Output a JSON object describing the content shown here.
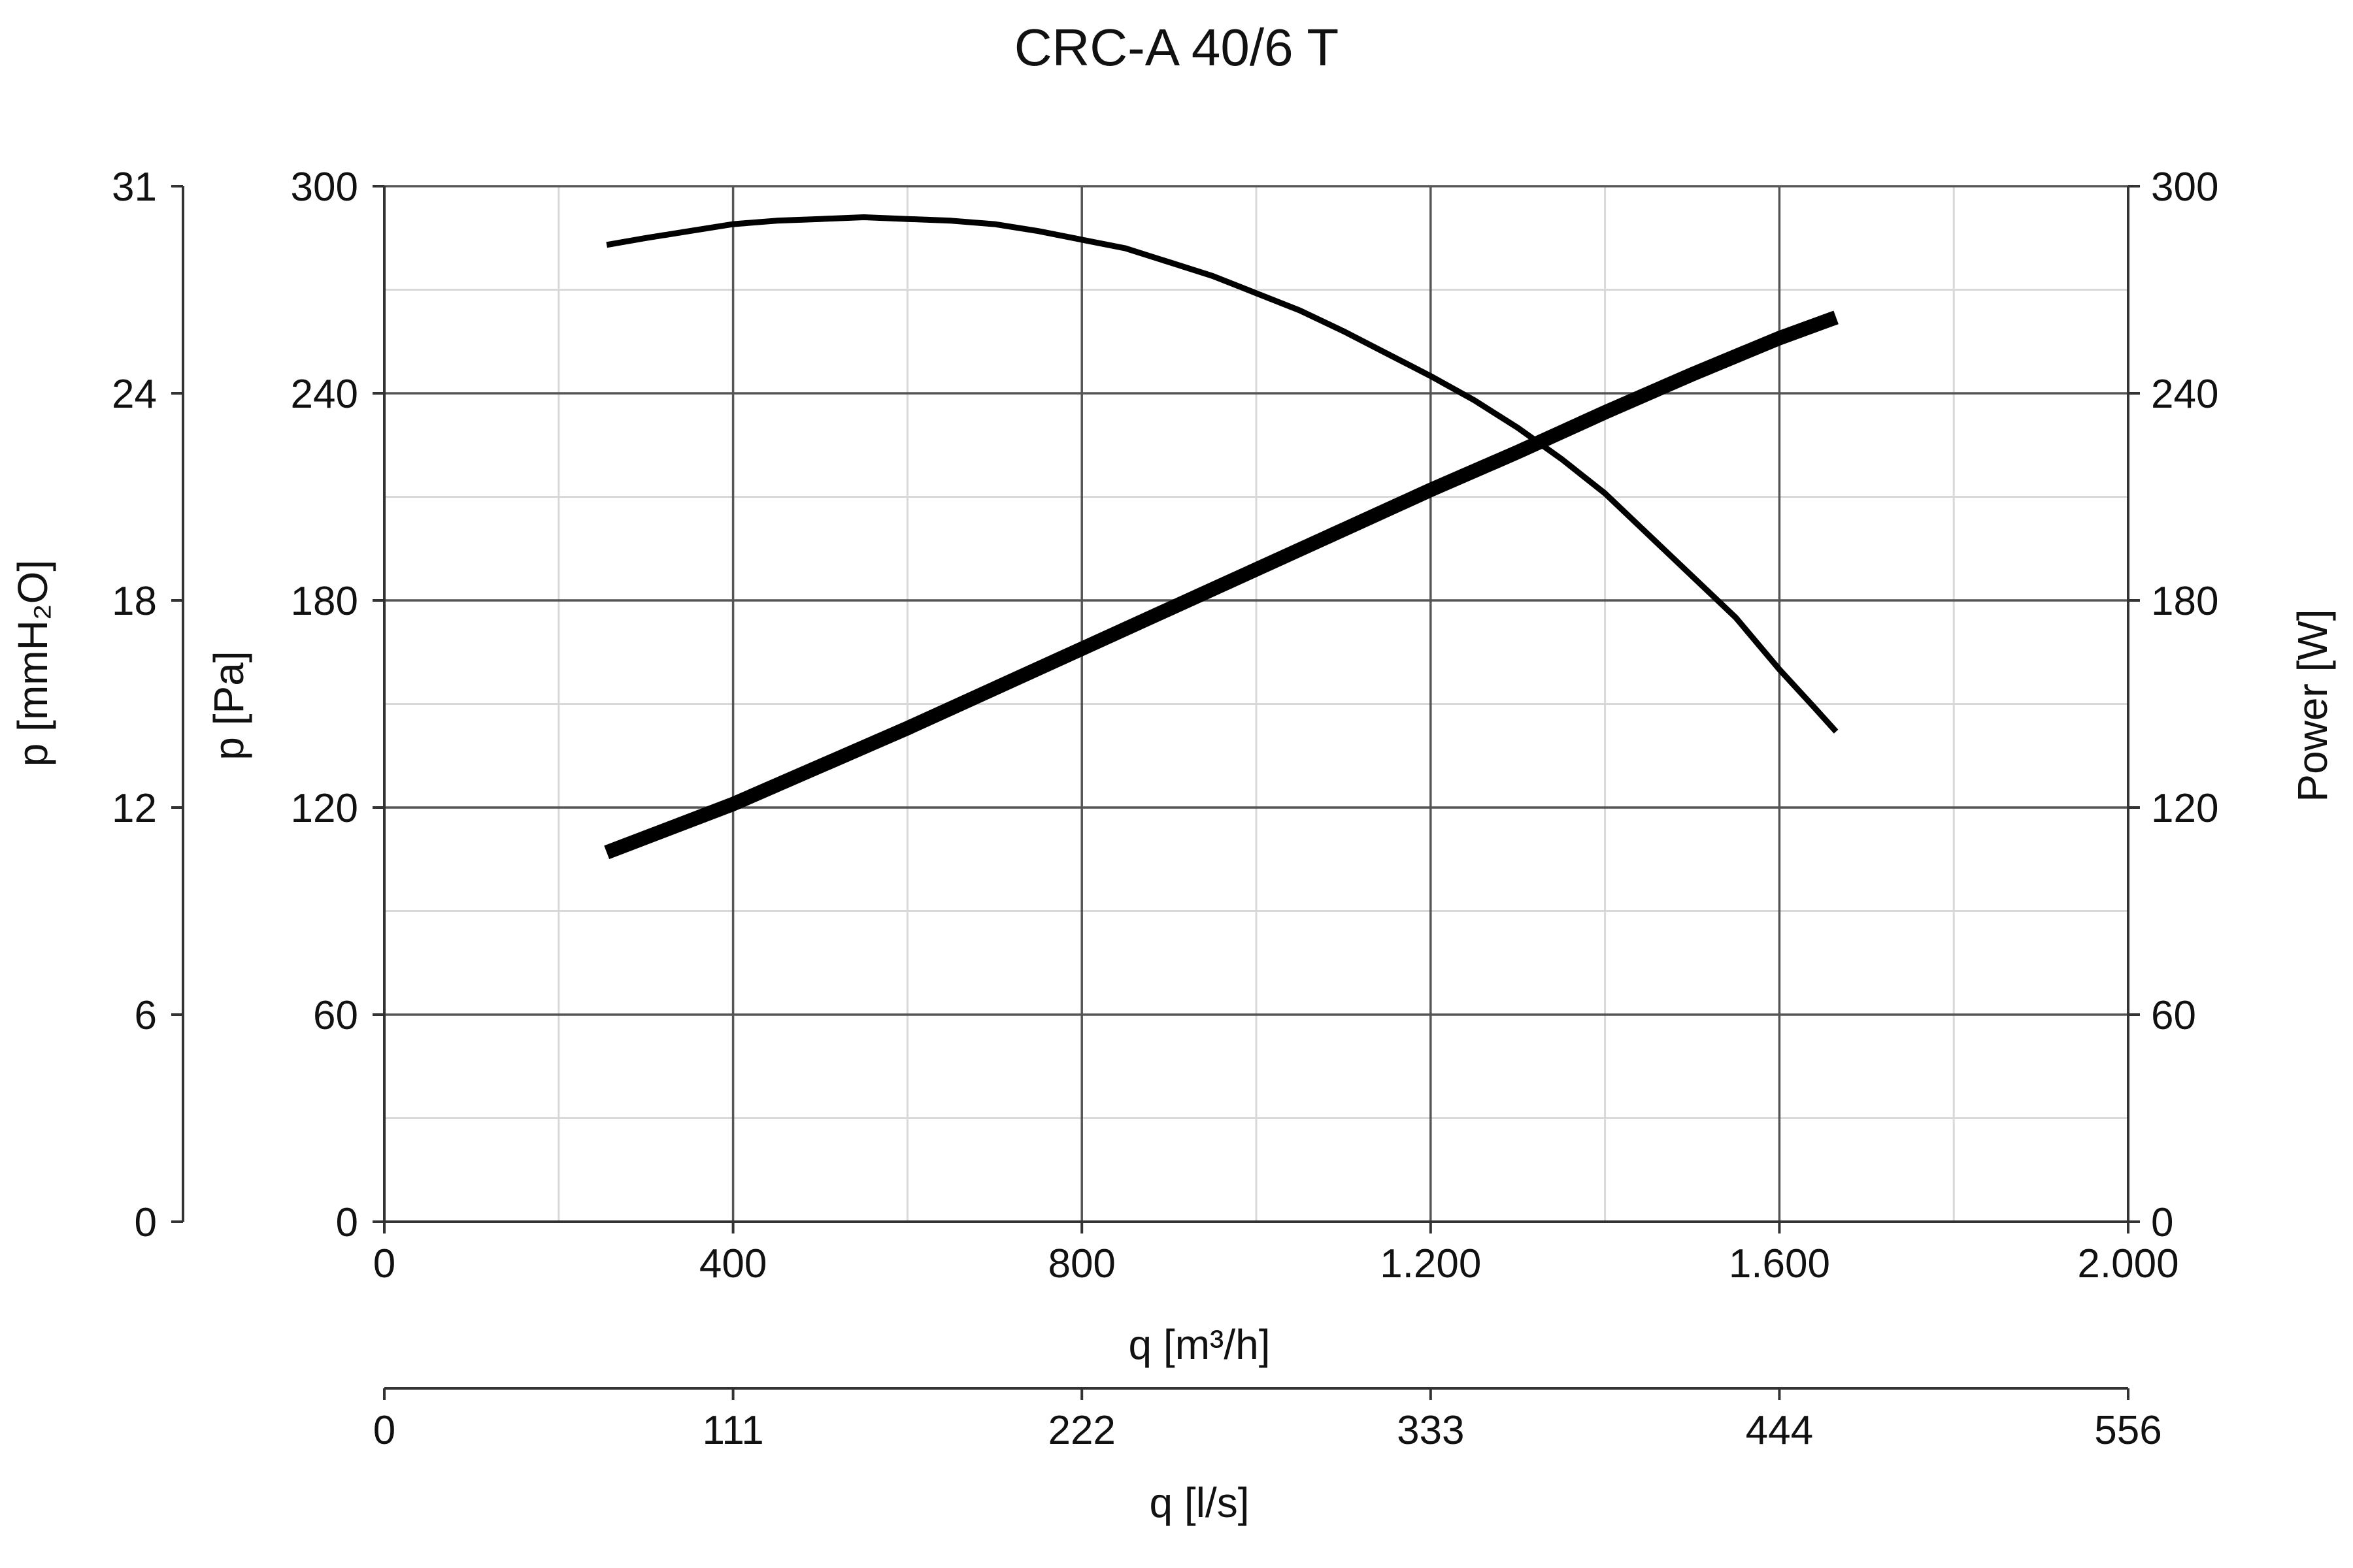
{
  "chart_data": {
    "type": "line",
    "title": "CRC-A 40/6 T",
    "xlabel": "q [m³/h]",
    "xlabel_secondary": "q [l/s]",
    "ylabel_left_outer": "p [mmH₂O]",
    "ylabel_left": "p [Pa]",
    "ylabel_right": "Power [W]",
    "xlim": [
      0,
      2000
    ],
    "ylim": [
      0,
      300
    ],
    "y_power_lim": [
      0,
      300
    ],
    "grid": true,
    "x_ticks": [
      {
        "value": 0,
        "label": "0"
      },
      {
        "value": 400,
        "label": "400"
      },
      {
        "value": 800,
        "label": "800"
      },
      {
        "value": 1200,
        "label": "1.200"
      },
      {
        "value": 1600,
        "label": "1.600"
      },
      {
        "value": 2000,
        "label": "2.000"
      }
    ],
    "x_ticks_secondary": [
      {
        "value": 0,
        "label": "0"
      },
      {
        "value": 400,
        "label": "111"
      },
      {
        "value": 800,
        "label": "222"
      },
      {
        "value": 1200,
        "label": "333"
      },
      {
        "value": 1600,
        "label": "444"
      },
      {
        "value": 2000,
        "label": "556"
      }
    ],
    "y_ticks_left": [
      {
        "value": 0,
        "label": "0"
      },
      {
        "value": 60,
        "label": "60"
      },
      {
        "value": 120,
        "label": "120"
      },
      {
        "value": 180,
        "label": "180"
      },
      {
        "value": 240,
        "label": "240"
      },
      {
        "value": 300,
        "label": "300"
      }
    ],
    "y_ticks_left_outer": [
      {
        "value": 0,
        "label": "0"
      },
      {
        "value": 60,
        "label": "6"
      },
      {
        "value": 120,
        "label": "12"
      },
      {
        "value": 180,
        "label": "18"
      },
      {
        "value": 240,
        "label": "24"
      },
      {
        "value": 300,
        "label": "31"
      }
    ],
    "y_ticks_right": [
      {
        "value": 0,
        "label": "0"
      },
      {
        "value": 60,
        "label": "60"
      },
      {
        "value": 120,
        "label": "120"
      },
      {
        "value": 180,
        "label": "180"
      },
      {
        "value": 240,
        "label": "240"
      },
      {
        "value": 300,
        "label": "300"
      }
    ],
    "series": [
      {
        "id": "pressure",
        "axis": "left",
        "weight": "thin",
        "points": [
          [
            255,
            283
          ],
          [
            300,
            285
          ],
          [
            350,
            287
          ],
          [
            400,
            289
          ],
          [
            450,
            290
          ],
          [
            500,
            290.5
          ],
          [
            550,
            291
          ],
          [
            600,
            290.5
          ],
          [
            650,
            290
          ],
          [
            700,
            289
          ],
          [
            750,
            287
          ],
          [
            800,
            284.5
          ],
          [
            850,
            282
          ],
          [
            900,
            278
          ],
          [
            950,
            274
          ],
          [
            1000,
            269
          ],
          [
            1050,
            264
          ],
          [
            1100,
            258
          ],
          [
            1150,
            251.5
          ],
          [
            1200,
            245
          ],
          [
            1250,
            238
          ],
          [
            1300,
            230
          ],
          [
            1350,
            221
          ],
          [
            1400,
            211
          ],
          [
            1450,
            199
          ],
          [
            1500,
            187
          ],
          [
            1550,
            175
          ],
          [
            1600,
            160
          ],
          [
            1640,
            149
          ],
          [
            1665,
            142
          ]
        ]
      },
      {
        "id": "power",
        "axis": "right",
        "weight": "thick",
        "points": [
          [
            255,
            107
          ],
          [
            400,
            121
          ],
          [
            500,
            132
          ],
          [
            600,
            143
          ],
          [
            700,
            154.5
          ],
          [
            800,
            166
          ],
          [
            900,
            177.5
          ],
          [
            1000,
            189
          ],
          [
            1100,
            200.5
          ],
          [
            1200,
            212
          ],
          [
            1300,
            223
          ],
          [
            1400,
            234.5
          ],
          [
            1500,
            245.5
          ],
          [
            1600,
            256
          ],
          [
            1665,
            262
          ]
        ]
      }
    ]
  }
}
